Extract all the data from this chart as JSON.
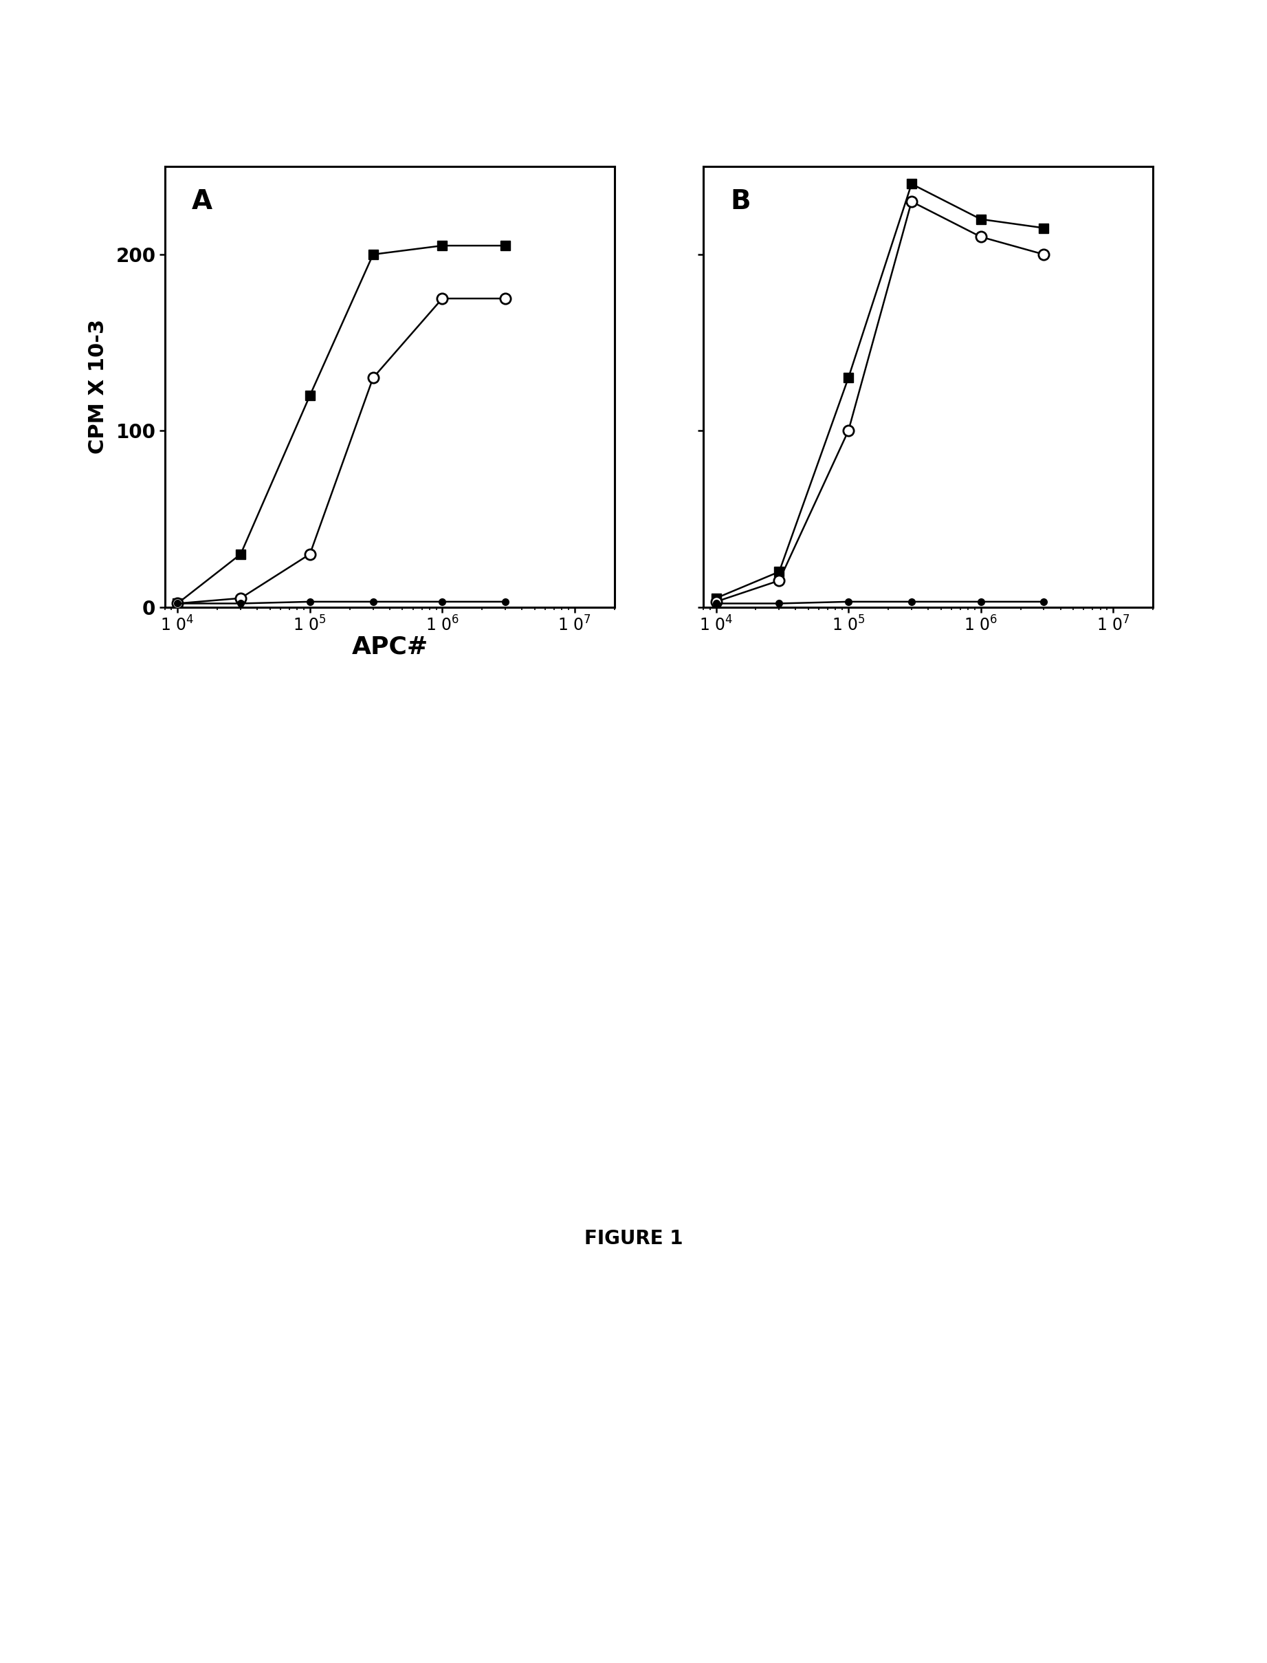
{
  "panel_A": {
    "label": "A",
    "filled_square": {
      "x": [
        10000.0,
        30000.0,
        100000.0,
        300000.0,
        1000000.0,
        3000000.0
      ],
      "y": [
        2,
        30,
        120,
        200,
        205,
        205
      ]
    },
    "open_circle": {
      "x": [
        10000.0,
        30000.0,
        100000.0,
        300000.0,
        1000000.0,
        3000000.0
      ],
      "y": [
        2,
        5,
        30,
        130,
        175,
        175
      ]
    },
    "filled_circle": {
      "x": [
        10000.0,
        30000.0,
        100000.0,
        300000.0,
        1000000.0,
        3000000.0
      ],
      "y": [
        2,
        2,
        3,
        3,
        3,
        3
      ]
    }
  },
  "panel_B": {
    "label": "B",
    "filled_square": {
      "x": [
        10000.0,
        30000.0,
        100000.0,
        300000.0,
        1000000.0,
        3000000.0
      ],
      "y": [
        5,
        20,
        130,
        240,
        220,
        215
      ]
    },
    "open_circle": {
      "x": [
        10000.0,
        30000.0,
        100000.0,
        300000.0,
        1000000.0,
        3000000.0
      ],
      "y": [
        3,
        15,
        100,
        230,
        210,
        200
      ]
    },
    "filled_circle": {
      "x": [
        10000.0,
        30000.0,
        100000.0,
        300000.0,
        1000000.0,
        3000000.0
      ],
      "y": [
        2,
        2,
        3,
        3,
        3,
        3
      ]
    }
  },
  "xlabel": "APC#",
  "ylabel": "CPM X 10-3",
  "ylim": [
    0,
    250
  ],
  "xlim_log": [
    8000,
    20000000.0
  ],
  "yticks": [
    0,
    100,
    200
  ],
  "xticks": [
    10000.0,
    100000.0,
    1000000.0,
    10000000.0
  ],
  "figure_label": "FIGURE 1",
  "background_color": "#ffffff",
  "line_color": "#000000",
  "marker_size": 10,
  "line_width": 1.8
}
